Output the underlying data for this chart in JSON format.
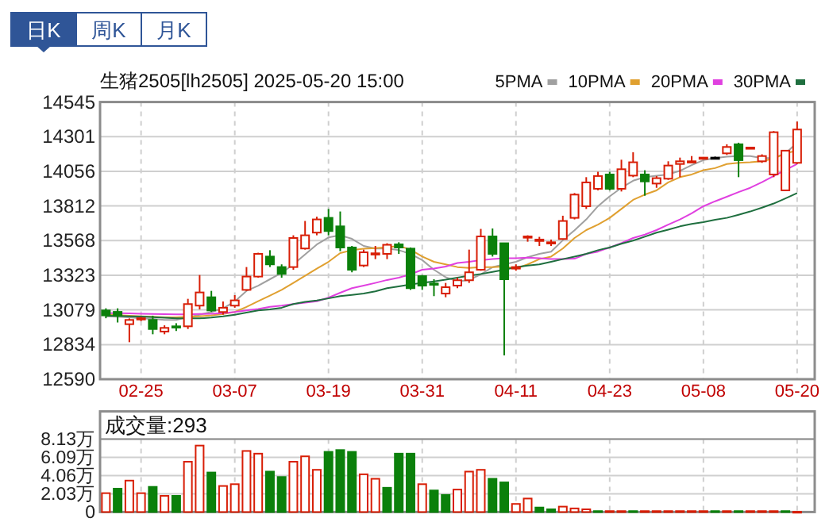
{
  "chart_data": [
    {
      "type": "candlestick",
      "title": "生猪2505[lh2505] 2025-05-20 15:00",
      "annotations": [
        "日K",
        "周K",
        "月K"
      ],
      "categories": [
        null,
        null,
        null,
        "02-25",
        null,
        null,
        null,
        null,
        null,
        null,
        null,
        "03-07",
        null,
        null,
        null,
        null,
        null,
        null,
        null,
        "03-19",
        null,
        null,
        null,
        null,
        null,
        null,
        null,
        "03-31",
        null,
        null,
        null,
        null,
        null,
        null,
        null,
        "04-11",
        null,
        null,
        null,
        null,
        null,
        null,
        null,
        "04-23",
        null,
        null,
        null,
        null,
        null,
        null,
        null,
        "05-08",
        null,
        null,
        null,
        null,
        null,
        null,
        null,
        "05-20"
      ],
      "ohlc": [
        [
          13075,
          13090,
          13020,
          13040
        ],
        [
          13065,
          13090,
          12990,
          13038
        ],
        [
          12978,
          13019,
          12851,
          13008
        ],
        [
          13015,
          13030,
          13000,
          13020
        ],
        [
          13008,
          13038,
          12907,
          12944
        ],
        [
          12926,
          12970,
          12907,
          12952
        ],
        [
          12963,
          12985,
          12930,
          12955
        ],
        [
          12963,
          13157,
          12944,
          13120
        ],
        [
          13109,
          13325,
          13082,
          13202
        ],
        [
          13168,
          13213,
          13064,
          13075
        ],
        [
          13064,
          13138,
          13045,
          13094
        ],
        [
          13109,
          13183,
          13094,
          13146
        ],
        [
          13220,
          13381,
          13213,
          13314
        ],
        [
          13314,
          13482,
          13306,
          13474
        ],
        [
          13455,
          13500,
          13381,
          13400
        ],
        [
          13381,
          13400,
          13306,
          13333
        ],
        [
          13381,
          13605,
          13362,
          13586
        ],
        [
          13512,
          13706,
          13504,
          13605
        ],
        [
          13624,
          13736,
          13605,
          13717
        ],
        [
          13728,
          13791,
          13605,
          13635
        ],
        [
          13668,
          13773,
          13493,
          13519
        ],
        [
          13519,
          13530,
          13344,
          13362
        ],
        [
          13392,
          13504,
          13381,
          13485
        ],
        [
          13470,
          13530,
          13437,
          13478
        ],
        [
          13474,
          13549,
          13437,
          13538
        ],
        [
          13541,
          13556,
          13474,
          13519
        ],
        [
          13511,
          13519,
          13220,
          13232
        ],
        [
          13317,
          13325,
          13220,
          13250
        ],
        [
          13265,
          13295,
          13176,
          13258
        ],
        [
          13194,
          13269,
          13168,
          13239
        ],
        [
          13250,
          13306,
          13232,
          13288
        ],
        [
          13288,
          13504,
          13269,
          13344
        ],
        [
          13362,
          13650,
          13355,
          13597
        ],
        [
          13597,
          13653,
          13455,
          13474
        ],
        [
          13549,
          13549,
          12758,
          13295
        ],
        [
          13370,
          13400,
          13355,
          13381
        ],
        [
          13590,
          13605,
          13560,
          13597
        ],
        [
          13565,
          13594,
          13530,
          13575
        ],
        [
          13549,
          13575,
          13530,
          13556
        ],
        [
          13579,
          13743,
          13579,
          13706
        ],
        [
          13728,
          13903,
          13717,
          13892
        ],
        [
          13810,
          14015,
          13791,
          13978
        ],
        [
          13933,
          14053,
          13922,
          14023
        ],
        [
          14034,
          14053,
          13922,
          13933
        ],
        [
          13933,
          14138,
          13914,
          14071
        ],
        [
          14026,
          14191,
          14015,
          14120
        ],
        [
          14034,
          14064,
          13884,
          13985
        ],
        [
          13970,
          14023,
          13940,
          14008
        ],
        [
          14004,
          14127,
          13996,
          14097
        ],
        [
          14108,
          14153,
          14015,
          14127
        ],
        [
          14123,
          14164,
          14116,
          14127
        ],
        [
          14150,
          14157,
          14146,
          14153
        ],
        [
          14153,
          14160,
          14146,
          14153
        ],
        [
          14183,
          14247,
          14172,
          14228
        ],
        [
          14247,
          14258,
          14015,
          14135
        ],
        [
          14220,
          14224,
          14220,
          14224
        ],
        [
          14127,
          14176,
          14116,
          14164
        ],
        [
          14034,
          14340,
          14015,
          14332
        ],
        [
          13922,
          14202,
          13922,
          14202
        ],
        [
          14116,
          14407,
          14108,
          14351
        ]
      ],
      "series": [
        {
          "name": "5PMA",
          "type": "line",
          "color": "#a0a0a0",
          "values": [
            13034,
            13030,
            13027,
            13020,
            13015,
            13008,
            13008,
            13027,
            13045,
            13064,
            13090,
            13138,
            13213,
            13250,
            13295,
            13340,
            13400,
            13470,
            13540,
            13590,
            13605,
            13580,
            13530,
            13512,
            13512,
            13500,
            13474,
            13430,
            13362,
            13310,
            13280,
            13290,
            13330,
            13380,
            13400,
            13418,
            13450,
            13474,
            13490,
            13570,
            13640,
            13717,
            13810,
            13880,
            13940,
            13990,
            14015,
            14025,
            14034,
            14060,
            14100,
            14135,
            14150,
            14160,
            14164,
            14164,
            14150,
            14150,
            14183,
            14258
          ]
        },
        {
          "name": "10PMA",
          "type": "line",
          "color": "#e0a030",
          "values": [
            13045,
            13042,
            13038,
            13034,
            13030,
            13027,
            13027,
            13030,
            13034,
            13040,
            13050,
            13064,
            13100,
            13140,
            13180,
            13220,
            13269,
            13320,
            13370,
            13418,
            13480,
            13500,
            13511,
            13515,
            13520,
            13530,
            13504,
            13455,
            13418,
            13400,
            13381,
            13375,
            13381,
            13381,
            13385,
            13370,
            13400,
            13437,
            13455,
            13512,
            13586,
            13642,
            13680,
            13728,
            13791,
            13855,
            13892,
            13922,
            13978,
            14015,
            14034,
            14064,
            14079,
            14108,
            14116,
            14120,
            14127,
            14146,
            14183,
            14202
          ]
        },
        {
          "name": "20PMA",
          "type": "line",
          "color": "#e040e0",
          "values": [
            13056,
            13056,
            13054,
            13052,
            13050,
            13049,
            13048,
            13048,
            13050,
            13052,
            13056,
            13064,
            13075,
            13085,
            13101,
            13109,
            13120,
            13130,
            13140,
            13165,
            13200,
            13232,
            13250,
            13269,
            13290,
            13306,
            13330,
            13362,
            13370,
            13385,
            13410,
            13418,
            13430,
            13437,
            13444,
            13444,
            13448,
            13444,
            13437,
            13437,
            13440,
            13474,
            13490,
            13519,
            13550,
            13586,
            13610,
            13642,
            13680,
            13717,
            13760,
            13810,
            13845,
            13877,
            13910,
            13940,
            13980,
            14023,
            14065,
            14108
          ]
        },
        {
          "name": "30PMA",
          "type": "line",
          "color": "#1f6f3f",
          "values": [
            13038,
            13036,
            13034,
            13032,
            13028,
            13024,
            13020,
            13019,
            13019,
            13025,
            13034,
            13045,
            13060,
            13075,
            13082,
            13094,
            13120,
            13135,
            13146,
            13160,
            13176,
            13185,
            13194,
            13210,
            13232,
            13245,
            13258,
            13270,
            13280,
            13292,
            13306,
            13320,
            13332,
            13347,
            13362,
            13380,
            13392,
            13400,
            13418,
            13437,
            13455,
            13474,
            13500,
            13519,
            13545,
            13568,
            13595,
            13624,
            13645,
            13668,
            13685,
            13698,
            13715,
            13728,
            13750,
            13773,
            13800,
            13829,
            13865,
            13903
          ]
        }
      ],
      "ylim": [
        12590,
        14545
      ],
      "yticks": [
        12590,
        12834,
        13079,
        13323,
        13568,
        13812,
        14056,
        14301,
        14545
      ],
      "grid": true,
      "legend": "top right"
    },
    {
      "type": "bar",
      "title": "成交量:293",
      "categories": [
        null,
        null,
        null,
        null,
        null,
        null,
        null,
        null,
        null,
        null,
        null,
        null,
        null,
        null,
        null,
        null,
        null,
        null,
        null,
        null,
        null,
        null,
        null,
        null,
        null,
        null,
        null,
        null,
        null,
        null,
        null,
        null,
        null,
        null,
        null,
        null,
        null,
        null,
        null,
        null,
        null,
        null,
        null,
        null,
        null,
        null,
        null,
        null,
        null,
        null,
        null,
        null,
        null,
        null,
        null,
        null,
        null,
        null,
        null,
        null
      ],
      "values": [
        2.1,
        2.6,
        3.5,
        2.1,
        2.8,
        1.8,
        1.8,
        5.6,
        7.4,
        4.4,
        2.9,
        3.1,
        6.8,
        6.5,
        4.5,
        3.9,
        5.6,
        6.2,
        4.7,
        6.7,
        6.9,
        6.7,
        4.2,
        3.7,
        2.7,
        6.5,
        6.5,
        3.1,
        2.4,
        1.9,
        2.5,
        4.5,
        4.7,
        3.7,
        3.3,
        0.9,
        1.5,
        0.5,
        0.3,
        0.6,
        0.4,
        0.3,
        0.1,
        0.1,
        0.1,
        0.1,
        0.1,
        0.1,
        0.1,
        0.1,
        0.1,
        0.1,
        0.1,
        0.1,
        0.1,
        0.1,
        0.1,
        0.1,
        0.1,
        0.0293
      ],
      "colors": [
        "#d81e06",
        "#0b800b",
        "#d81e06",
        "#d81e06",
        "#0b800b",
        "#d81e06",
        "#0b800b",
        "#d81e06",
        "#d81e06",
        "#0b800b",
        "#d81e06",
        "#d81e06",
        "#d81e06",
        "#d81e06",
        "#0b800b",
        "#0b800b",
        "#d81e06",
        "#d81e06",
        "#d81e06",
        "#0b800b",
        "#0b800b",
        "#0b800b",
        "#d81e06",
        "#d81e06",
        "#0b800b",
        "#0b800b",
        "#0b800b",
        "#d81e06",
        "#0b800b",
        "#0b800b",
        "#d81e06",
        "#d81e06",
        "#d81e06",
        "#0b800b",
        "#0b800b",
        "#d81e06",
        "#d81e06",
        "#0b800b",
        "#0b800b",
        "#d81e06",
        "#d81e06",
        "#d81e06",
        "#0b800b",
        "#d81e06",
        "#d81e06",
        "#0b800b",
        "#d81e06",
        "#d81e06",
        "#d81e06",
        "#d81e06",
        "#d81e06",
        "#d81e06",
        "#0b800b",
        "#d81e06",
        "#0b800b",
        "#d81e06",
        "#d81e06",
        "#d81e06",
        "#0b800b",
        "#d81e06"
      ],
      "ylim": [
        0,
        8.13
      ],
      "yticks": [
        0,
        {
          "value": 2.03,
          "label": "2.03万"
        },
        {
          "value": 4.06,
          "label": "4.06万"
        },
        {
          "value": 6.09,
          "label": "6.09万"
        },
        {
          "value": 8.13,
          "label": "8.13万"
        }
      ],
      "grid": true,
      "tick_labels": "y"
    }
  ]
}
